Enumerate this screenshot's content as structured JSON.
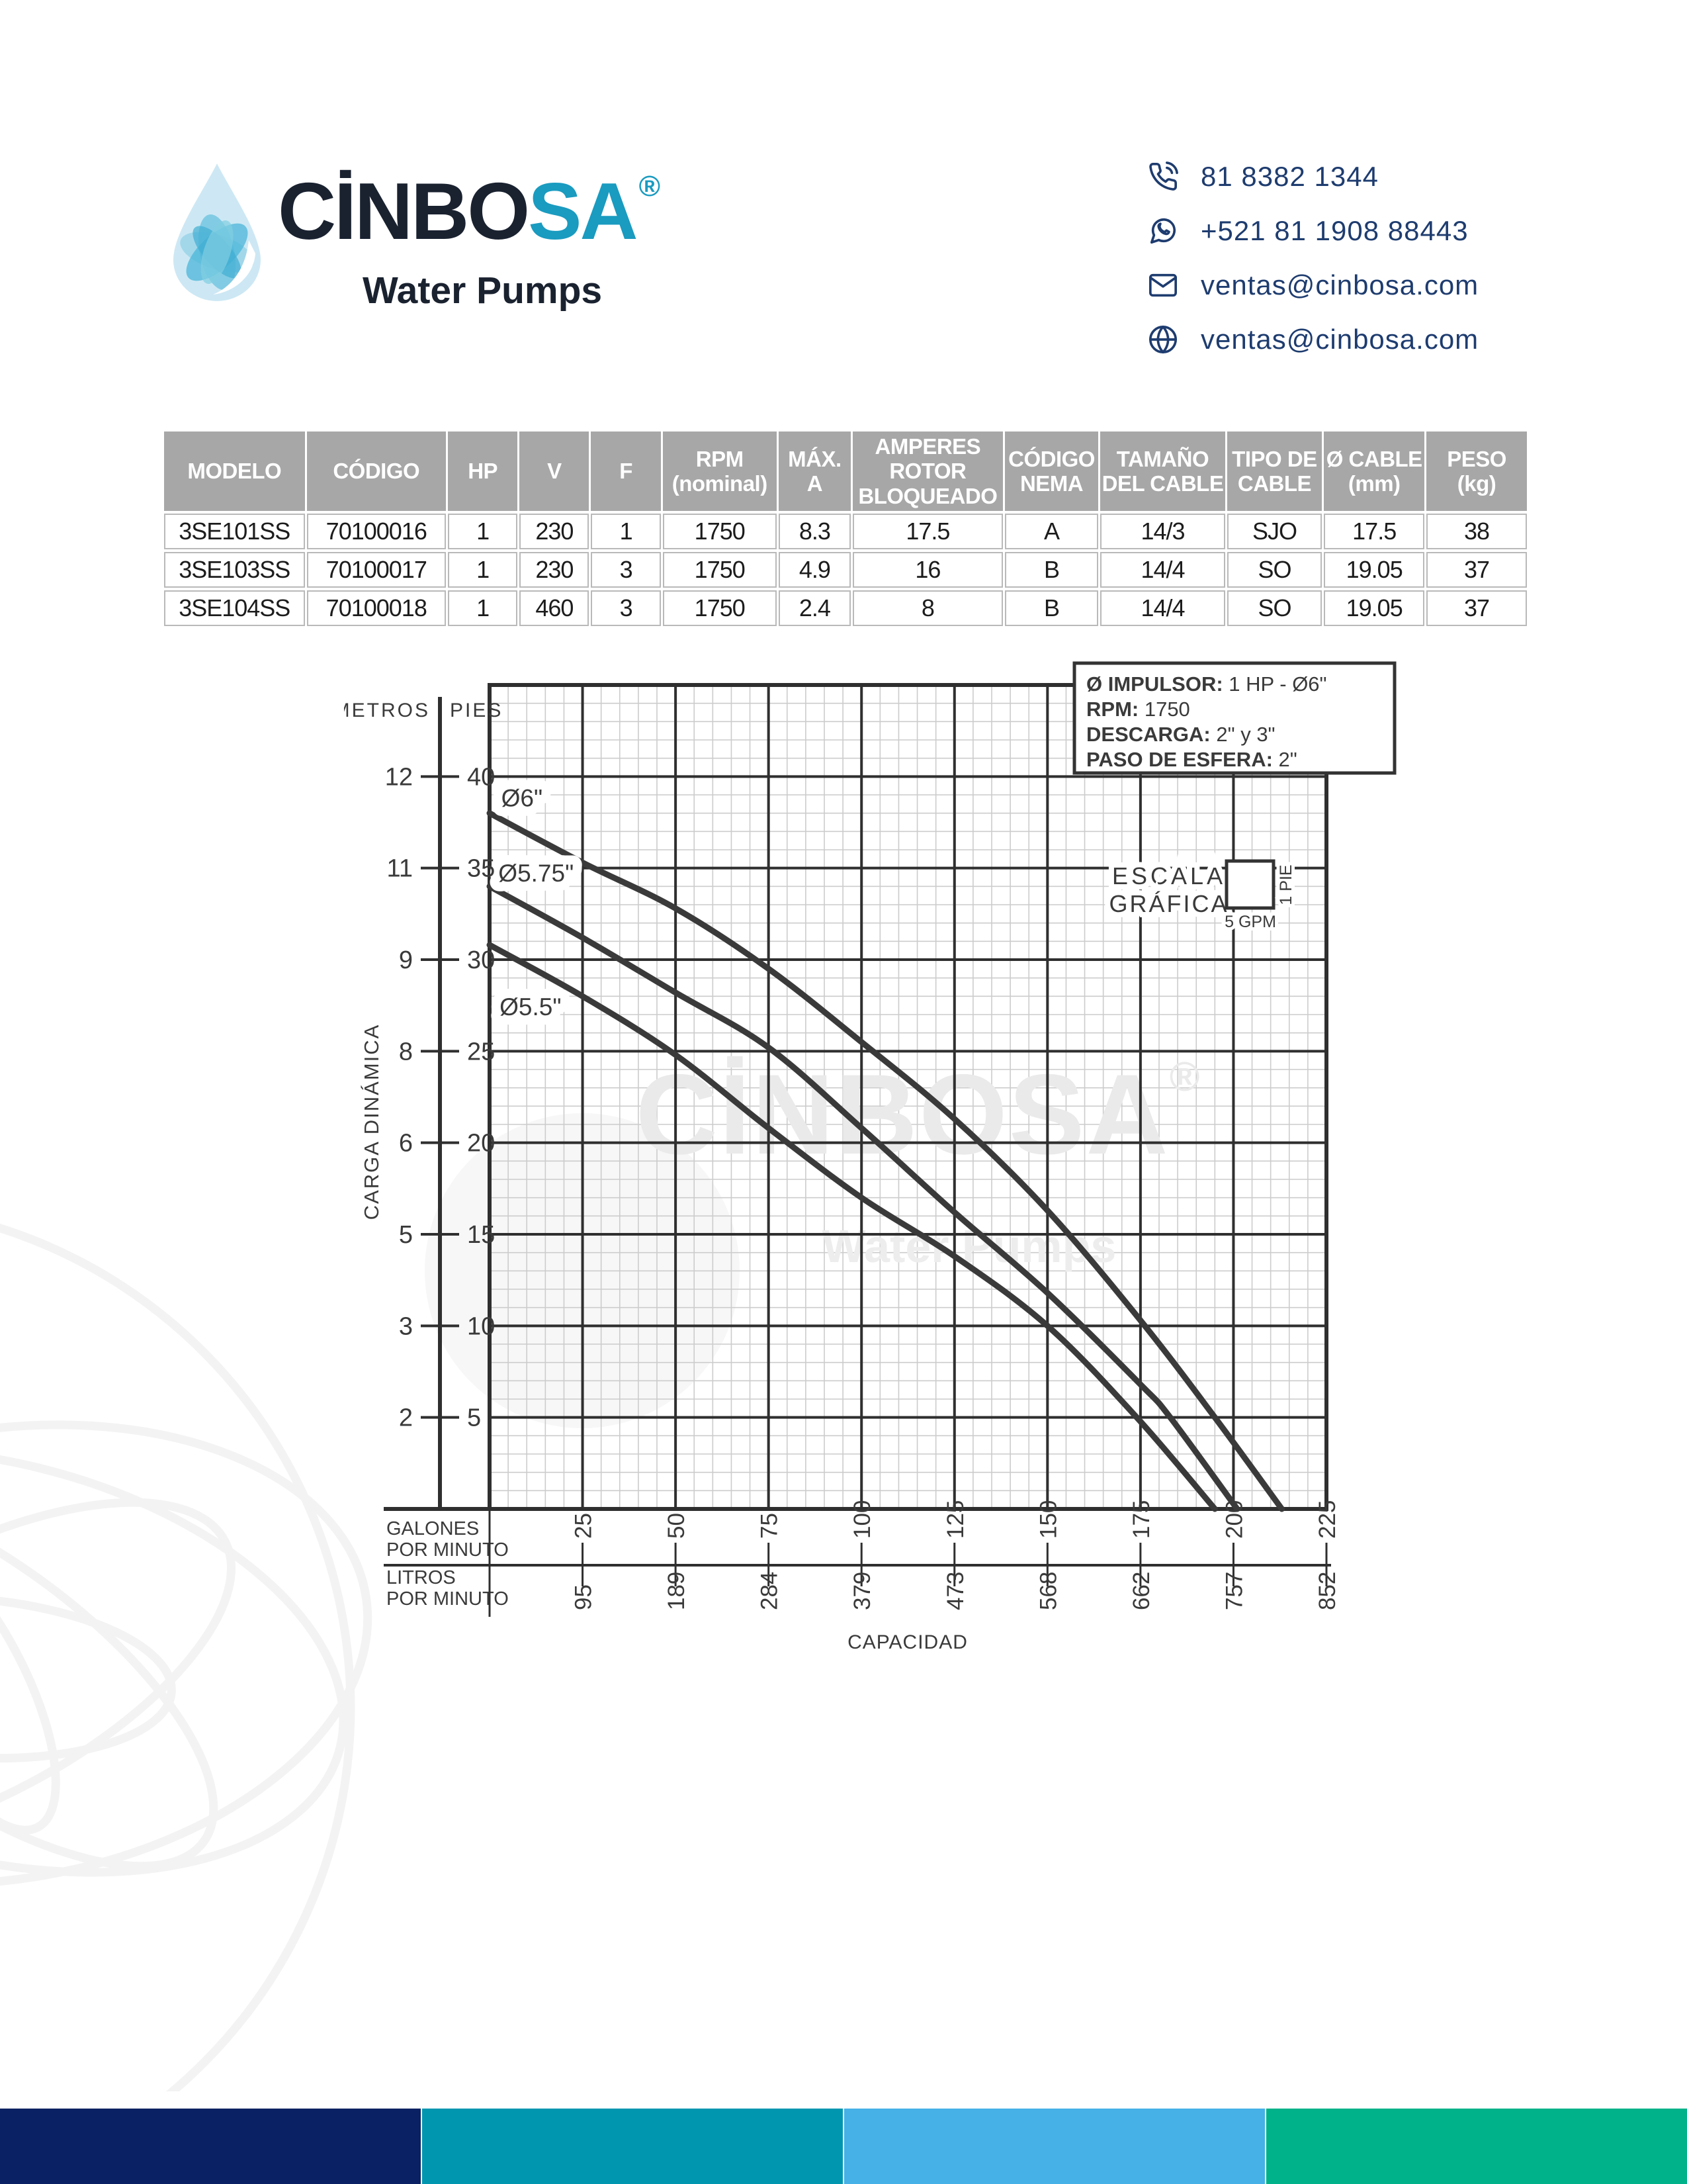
{
  "header": {
    "brand": {
      "name_dark": "CİNBO",
      "name_accent": "SA",
      "registered": "®",
      "tagline": "Water Pumps"
    },
    "contact": [
      {
        "icon": "phone-icon",
        "text": "81 8382 1344"
      },
      {
        "icon": "whatsapp-icon",
        "text": "+521 81 1908 88443"
      },
      {
        "icon": "email-icon",
        "text": "ventas@cinbosa.com"
      },
      {
        "icon": "globe-icon",
        "text": "ventas@cinbosa.com"
      }
    ]
  },
  "spec_table": {
    "columns": [
      "MODELO",
      "CÓDIGO",
      "HP",
      "V",
      "F",
      "RPM\n(nominal)",
      "MÁX.\nA",
      "AMPERES\nROTOR\nBLOQUEADO",
      "CÓDIGO\nNEMA",
      "TAMAÑO\nDEL CABLE",
      "TIPO DE\nCABLE",
      "Ø CABLE\n(mm)",
      "PESO\n(kg)"
    ],
    "col_widths_pct": [
      10.5,
      10.4,
      5.2,
      5.2,
      5.2,
      8.5,
      5.4,
      11.2,
      7.0,
      9.3,
      7.1,
      7.5,
      7.5
    ],
    "rows": [
      [
        "3SE101SS",
        "70100016",
        "1",
        "230",
        "1",
        "1750",
        "8.3",
        "17.5",
        "A",
        "14/3",
        "SJO",
        "17.5",
        "38"
      ],
      [
        "3SE103SS",
        "70100017",
        "1",
        "230",
        "3",
        "1750",
        "4.9",
        "16",
        "B",
        "14/4",
        "SO",
        "19.05",
        "37"
      ],
      [
        "3SE104SS",
        "70100018",
        "1",
        "460",
        "3",
        "1750",
        "2.4",
        "8",
        "B",
        "14/4",
        "SO",
        "19.05",
        "37"
      ]
    ]
  },
  "chart_data": {
    "type": "line",
    "title": "",
    "xlabel": "CAPACIDAD",
    "ylabel": "CARGA DINÁMICA",
    "grid": "minor 5 GPM × 1 PIE, major 25 GPM × 5 PIES",
    "legend_position": "labels on curves, upper-left",
    "x_axis": {
      "xlim": [
        0,
        225
      ],
      "gpm_label_line1": "GALONES",
      "gpm_label_line2": "POR MINUTO",
      "lpm_label_line1": "LITROS",
      "lpm_label_line2": "POR MINUTO",
      "gpm_ticks": [
        25,
        50,
        75,
        100,
        125,
        150,
        175,
        200,
        225
      ],
      "lpm_ticks": [
        95,
        189,
        284,
        379,
        473,
        568,
        662,
        757,
        852
      ]
    },
    "y_axis": {
      "ylim_pies": [
        0,
        45
      ],
      "left_header": "METROS",
      "right_header": "PIES",
      "metros_ticks": [
        12,
        11,
        9,
        8,
        6,
        5,
        3,
        2
      ],
      "pies_ticks": [
        40,
        35,
        30,
        25,
        20,
        15,
        10,
        5
      ]
    },
    "series": [
      {
        "name": "Ø6\"",
        "label_pos": [
          8.7,
          38.8
        ],
        "points": [
          [
            0,
            38
          ],
          [
            25,
            35.3
          ],
          [
            50,
            32.8
          ],
          [
            75,
            29.5
          ],
          [
            100,
            25.5
          ],
          [
            125,
            21.3
          ],
          [
            150,
            16.3
          ],
          [
            175,
            10.3
          ],
          [
            195,
            5
          ],
          [
            213,
            0
          ]
        ]
      },
      {
        "name": "Ø5.75\"",
        "label_pos": [
          12.5,
          34.7
        ],
        "points": [
          [
            0,
            34
          ],
          [
            25,
            31.2
          ],
          [
            50,
            28.2
          ],
          [
            75,
            25.2
          ],
          [
            100,
            20.8
          ],
          [
            125,
            16.2
          ],
          [
            150,
            11.8
          ],
          [
            175,
            6.8
          ],
          [
            183,
            5
          ],
          [
            201,
            0
          ]
        ]
      },
      {
        "name": "Ø5.5\"",
        "label_pos": [
          11,
          27.4
        ],
        "points": [
          [
            0,
            30.8
          ],
          [
            25,
            28
          ],
          [
            50,
            24.8
          ],
          [
            75,
            20.8
          ],
          [
            100,
            17
          ],
          [
            125,
            13.8
          ],
          [
            150,
            10
          ],
          [
            174,
            5
          ],
          [
            195,
            0
          ]
        ]
      }
    ],
    "info_box": {
      "lines": [
        {
          "label": "Ø IMPULSOR:",
          "value": " 1 HP - Ø6\""
        },
        {
          "label": "RPM:",
          "value": " 1750"
        },
        {
          "label": "DESCARGA:",
          "value": " 2\" y 3\""
        },
        {
          "label": "PASO DE ESFERA:",
          "value": " 2\""
        }
      ]
    },
    "scale_legend": {
      "line1": "ESCALA",
      "line2": "GRÁFICA",
      "box_width_label": "5 GPM",
      "box_height_label": "1 PIE"
    },
    "watermark": {
      "line1": "CİNBOSA",
      "registered": "®",
      "line2": "Water Pumps"
    }
  },
  "footer": {
    "bar_colors": [
      "#0a2263",
      "#0096b0",
      "#45b1e7",
      "#00b289"
    ]
  },
  "colors": {
    "navy_text": "#1e3c6f",
    "brand_dark": "#1a2230",
    "brand_accent": "#1a9bc0",
    "table_header_bg": "#a7a7a7",
    "grid_minor": "#cccccc",
    "grid_major": "#2f2f2f",
    "curve": "#3a3a3a"
  }
}
